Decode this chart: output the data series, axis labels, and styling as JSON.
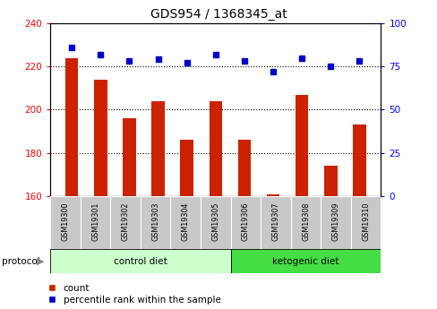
{
  "title": "GDS954 / 1368345_at",
  "samples": [
    "GSM19300",
    "GSM19301",
    "GSM19302",
    "GSM19303",
    "GSM19304",
    "GSM19305",
    "GSM19306",
    "GSM19307",
    "GSM19308",
    "GSM19309",
    "GSM19310"
  ],
  "counts": [
    224,
    214,
    196,
    204,
    186,
    204,
    186,
    161,
    207,
    174,
    193
  ],
  "percentiles": [
    86,
    82,
    78,
    79,
    77,
    82,
    78,
    72,
    80,
    75,
    78
  ],
  "ylim_left": [
    160,
    240
  ],
  "ylim_right": [
    0,
    100
  ],
  "yticks_left": [
    160,
    180,
    200,
    220,
    240
  ],
  "yticks_right": [
    0,
    25,
    50,
    75,
    100
  ],
  "bar_color": "#cc2200",
  "dot_color": "#0000cc",
  "bg_color": "#ffffff",
  "control_label": "control diet",
  "ketogenic_label": "ketogenic diet",
  "protocol_label": "protocol",
  "legend_count": "count",
  "legend_percentile": "percentile rank within the sample",
  "tick_bg": "#c8c8c8",
  "control_bg": "#ccffcc",
  "ketogenic_bg": "#44dd44",
  "hgrid_values": [
    180,
    200,
    220
  ],
  "n_control": 6,
  "n_ketogenic": 5
}
